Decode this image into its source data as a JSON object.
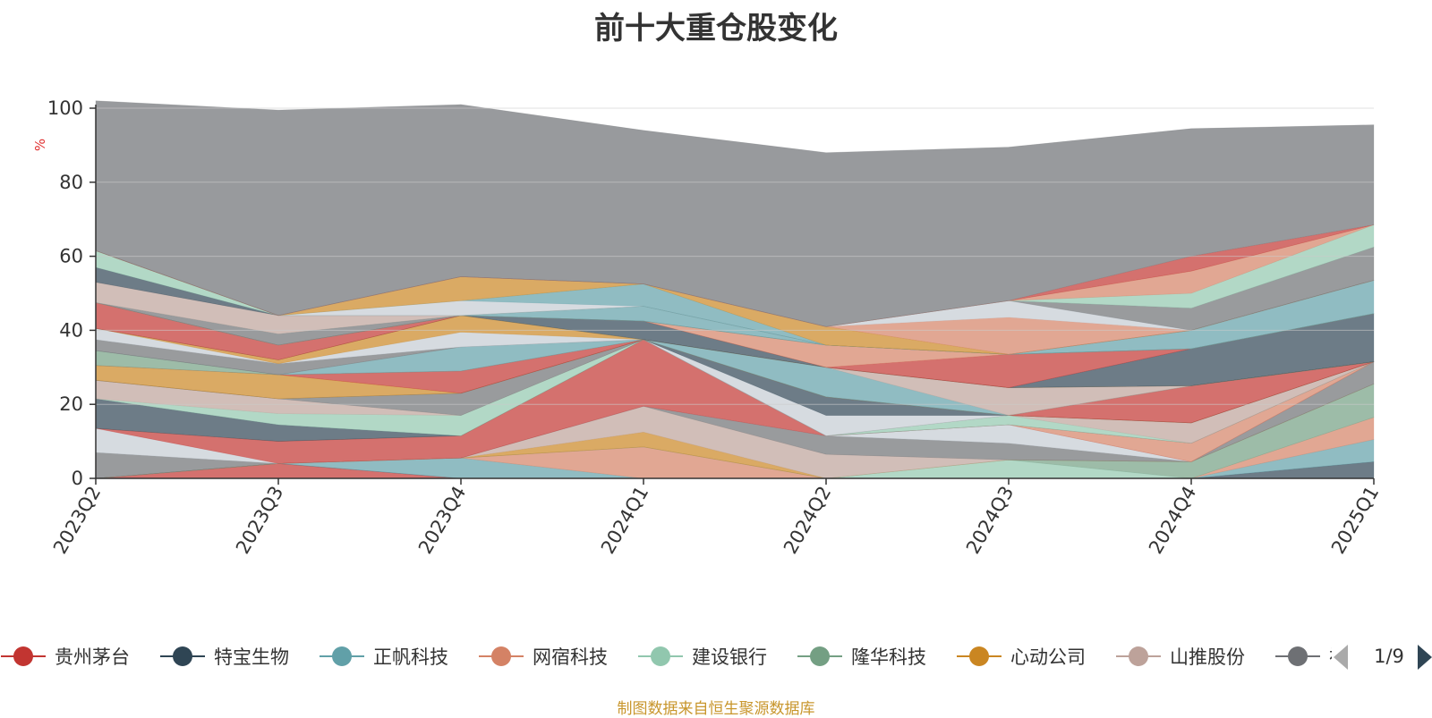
{
  "chart_data": {
    "type": "area",
    "stacked": true,
    "title": "前十大重仓股变化",
    "ylabel": "%",
    "xlabel": "",
    "ylim": [
      0,
      100
    ],
    "yticks": [
      0,
      20,
      40,
      60,
      80,
      100
    ],
    "grid": true,
    "legend_position": "bottom",
    "categories": [
      "2023Q2",
      "2023Q3",
      "2023Q4",
      "2024Q1",
      "2024Q2",
      "2024Q3",
      "2024Q4",
      "2025Q1"
    ],
    "series": [
      {
        "name": "贵州茅台",
        "color": "#c23531",
        "values": [
          0,
          4,
          0,
          0,
          0,
          0,
          0,
          0
        ]
      },
      {
        "name": "特宝生物",
        "color": "#2f4554",
        "values": [
          0,
          0,
          0,
          0,
          0,
          0,
          0,
          4.5
        ]
      },
      {
        "name": "正帆科技",
        "color": "#61a0a8",
        "values": [
          0,
          0,
          5.5,
          0,
          0,
          0,
          0,
          6
        ]
      },
      {
        "name": "网宿科技",
        "color": "#d48265",
        "values": [
          0,
          0,
          0,
          8.5,
          0,
          0,
          0,
          6
        ]
      },
      {
        "name": "建设银行",
        "color": "#91c7ae",
        "values": [
          0,
          0,
          0,
          0,
          0,
          5,
          0,
          0
        ]
      },
      {
        "name": "隆华科技",
        "color": "#749f83",
        "values": [
          0,
          0,
          0,
          0,
          0,
          0,
          4.5,
          9
        ]
      },
      {
        "name": "心动公司",
        "color": "#ca8622",
        "values": [
          0,
          0,
          0,
          4,
          0,
          0,
          0,
          0
        ]
      },
      {
        "name": "山推股份",
        "color": "#bda29a",
        "values": [
          0,
          0,
          0,
          7,
          6.5,
          0,
          0,
          0
        ]
      },
      {
        "name": "",
        "color": "#6e7074",
        "values": [
          7,
          0,
          0,
          0,
          5,
          4.5,
          0,
          6
        ]
      },
      {
        "name": "",
        "color": "#c4ccd3",
        "values": [
          6.5,
          0,
          0,
          0,
          0,
          5,
          0,
          0
        ]
      },
      {
        "name": "",
        "color": "#c23531",
        "values": [
          0,
          6,
          6,
          18,
          0,
          0,
          0,
          0
        ]
      },
      {
        "name": "",
        "color": "#d48265",
        "values": [
          0,
          0,
          0,
          0,
          0,
          0,
          5,
          0
        ]
      },
      {
        "name": "",
        "color": "#2f4554",
        "values": [
          8,
          4.5,
          0,
          0,
          0,
          0,
          0,
          0
        ]
      },
      {
        "name": "",
        "color": "#91c7ae",
        "values": [
          0,
          3,
          5.5,
          0,
          0,
          2.5,
          0,
          0
        ]
      },
      {
        "name": "",
        "color": "#bda29a",
        "values": [
          5,
          4,
          0,
          0,
          0,
          0,
          5.5,
          0
        ]
      },
      {
        "name": "",
        "color": "#6e7074",
        "values": [
          0,
          0,
          6,
          0,
          0,
          0,
          0,
          0
        ]
      },
      {
        "name": "",
        "color": "#c4ccd3",
        "values": [
          0,
          0,
          0,
          0,
          5.5,
          0,
          0,
          0
        ]
      },
      {
        "name": "",
        "color": "#2f4554",
        "values": [
          0,
          0,
          0,
          0,
          5,
          0,
          0,
          0
        ]
      },
      {
        "name": "",
        "color": "#ca8622",
        "values": [
          4,
          6.5,
          0,
          0,
          0,
          0,
          0,
          0
        ]
      },
      {
        "name": "",
        "color": "#c23531",
        "values": [
          0,
          0,
          6,
          0,
          0,
          0,
          10,
          0
        ]
      },
      {
        "name": "",
        "color": "#749f83",
        "values": [
          4,
          0,
          0,
          0,
          0,
          0,
          0,
          0
        ]
      },
      {
        "name": "",
        "color": "#61a0a8",
        "values": [
          0,
          0,
          6.5,
          0,
          8,
          0,
          0,
          0
        ]
      },
      {
        "name": "",
        "color": "#bda29a",
        "values": [
          0,
          0,
          0,
          0,
          0,
          7.5,
          0,
          0
        ]
      },
      {
        "name": "",
        "color": "#6e7074",
        "values": [
          3,
          3,
          0,
          0,
          0,
          0,
          0,
          0
        ]
      },
      {
        "name": "",
        "color": "#c4ccd3",
        "values": [
          3,
          0,
          4,
          0,
          0,
          0,
          0,
          0
        ]
      },
      {
        "name": "",
        "color": "#ca8622",
        "values": [
          0,
          1,
          4.5,
          0,
          0,
          0,
          0,
          0
        ]
      },
      {
        "name": "",
        "color": "#2f4554",
        "values": [
          0,
          0,
          0,
          5,
          0,
          0,
          10,
          13
        ]
      },
      {
        "name": "",
        "color": "#c23531",
        "values": [
          7,
          4,
          0,
          0,
          0,
          9,
          0,
          0
        ]
      },
      {
        "name": "",
        "color": "#d48265",
        "values": [
          0,
          0,
          0,
          0,
          6,
          0,
          0,
          0
        ]
      },
      {
        "name": "",
        "color": "#749f83",
        "values": [
          0,
          0,
          0,
          0,
          0,
          0,
          0,
          0
        ]
      },
      {
        "name": "",
        "color": "#91c7ae",
        "values": [
          0,
          0,
          0,
          0,
          0,
          0,
          0,
          0
        ]
      },
      {
        "name": "",
        "color": "#6e7074",
        "values": [
          0,
          3,
          0,
          0,
          0,
          0,
          0,
          0
        ]
      },
      {
        "name": "",
        "color": "#61a0a8",
        "values": [
          0,
          0,
          0,
          4,
          0,
          0,
          5,
          9
        ]
      },
      {
        "name": "",
        "color": "#bda29a",
        "values": [
          5.5,
          5,
          0,
          0,
          0,
          0,
          0,
          0
        ]
      },
      {
        "name": "",
        "color": "#2f4554",
        "values": [
          4,
          0,
          0,
          0,
          0,
          0,
          0,
          0
        ]
      },
      {
        "name": "",
        "color": "#91c7ae",
        "values": [
          4.5,
          0,
          0,
          0,
          0,
          0,
          0,
          0
        ]
      },
      {
        "name": "",
        "color": "#c4ccd3",
        "values": [
          0,
          0,
          4,
          0,
          0,
          0,
          0,
          0
        ]
      },
      {
        "name": "",
        "color": "#61a0a8",
        "values": [
          0,
          0,
          0,
          6,
          0,
          0,
          0,
          0
        ]
      },
      {
        "name": "",
        "color": "#ca8622",
        "values": [
          0,
          0,
          6.5,
          0,
          5,
          0,
          0,
          0
        ]
      },
      {
        "name": "",
        "color": "#d48265",
        "values": [
          0,
          0,
          0,
          0,
          0,
          10,
          0,
          0
        ]
      },
      {
        "name": "",
        "color": "#c4ccd3",
        "values": [
          0,
          0,
          0,
          0,
          0,
          4.5,
          0,
          0
        ]
      },
      {
        "name": "",
        "color": "#6e7074",
        "values": [
          0,
          0,
          0,
          0,
          0,
          0,
          6,
          9
        ]
      },
      {
        "name": "",
        "color": "#91c7ae",
        "values": [
          0,
          0,
          0,
          0,
          0,
          0,
          4,
          6
        ]
      },
      {
        "name": "",
        "color": "#d48265",
        "values": [
          0,
          0,
          0,
          0,
          0,
          0,
          6,
          0
        ]
      },
      {
        "name": "",
        "color": "#c23531",
        "values": [
          0,
          0,
          0,
          0,
          0,
          0,
          4,
          0
        ]
      },
      {
        "name": "",
        "color": "#7b7d82",
        "values": [
          40.5,
          55.5,
          46.5,
          41.5,
          47,
          41.5,
          34.5,
          27
        ]
      }
    ]
  },
  "legend": {
    "items": [
      {
        "label": "贵州茅台",
        "color": "#c23531"
      },
      {
        "label": "特宝生物",
        "color": "#2f4554"
      },
      {
        "label": "正帆科技",
        "color": "#61a0a8"
      },
      {
        "label": "网宿科技",
        "color": "#d48265"
      },
      {
        "label": "建设银行",
        "color": "#91c7ae"
      },
      {
        "label": "隆华科技",
        "color": "#749f83"
      },
      {
        "label": "心动公司",
        "color": "#ca8622"
      },
      {
        "label": "山推股份",
        "color": "#bda29a"
      },
      {
        "label": "祥",
        "color": "#6e7074"
      }
    ],
    "page_text": "1/9"
  },
  "footer": "制图数据来自恒生聚源数据库"
}
